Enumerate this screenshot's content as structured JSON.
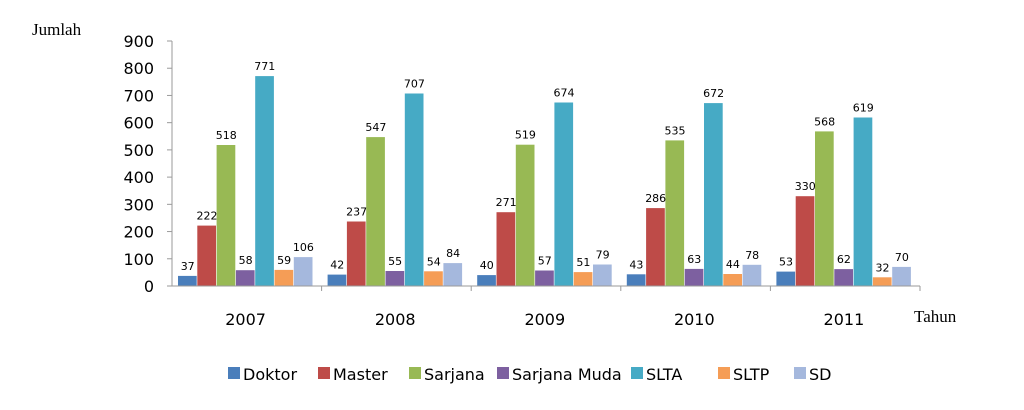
{
  "chart_data": {
    "type": "bar",
    "title": "",
    "ylabel": "Jumlah",
    "xlabel": "Tahun",
    "ylim": [
      0,
      900
    ],
    "yticks": [
      "0",
      "100",
      "200",
      "300",
      "400",
      "500",
      "600",
      "700",
      "800",
      "900"
    ],
    "grid": false,
    "legend_position": "bottom",
    "categories": [
      "2007",
      "2008",
      "2009",
      "2010",
      "2011"
    ],
    "series": [
      {
        "name": "Doktor",
        "color": "#4a7ebb",
        "values": [
          37,
          42,
          40,
          43,
          53
        ]
      },
      {
        "name": "Master",
        "color": "#be4b48",
        "values": [
          222,
          237,
          271,
          286,
          330
        ]
      },
      {
        "name": "Sarjana",
        "color": "#98b954",
        "values": [
          518,
          547,
          519,
          535,
          568
        ]
      },
      {
        "name": "Sarjana Muda",
        "color": "#7d60a0",
        "values": [
          58,
          55,
          57,
          63,
          62
        ]
      },
      {
        "name": "SLTA",
        "color": "#46aac5",
        "values": [
          771,
          707,
          674,
          672,
          619
        ]
      },
      {
        "name": "SLTP",
        "color": "#f59d56",
        "values": [
          59,
          54,
          51,
          44,
          32
        ]
      },
      {
        "name": "SD",
        "color": "#a5b8dd",
        "values": [
          106,
          84,
          79,
          78,
          70
        ]
      }
    ]
  }
}
